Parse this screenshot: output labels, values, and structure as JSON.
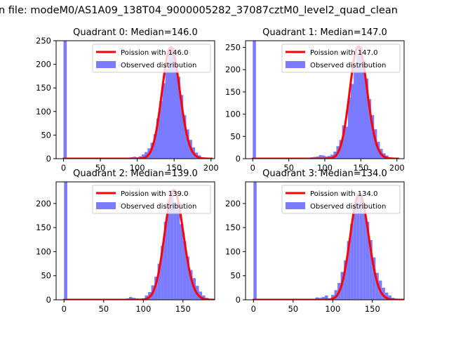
{
  "figure": {
    "suptitle": "n file: modeM0/AS1A09_138T04_9000005282_37087cztM0_level2_quad_clean"
  },
  "colors": {
    "fit_line": "#ff0000",
    "hist_fill": "#7b7bff"
  },
  "chart_data": [
    {
      "type": "bar",
      "title": "Quadrant 0: Median=146.0",
      "xlim": [
        -10,
        205
      ],
      "ylim": [
        0,
        250
      ],
      "xticks": [
        0,
        50,
        100,
        150,
        200
      ],
      "xtick_labels": [
        "0",
        "50",
        "100",
        "150",
        "200"
      ],
      "yticks": [
        0,
        50,
        100,
        150,
        200,
        250
      ],
      "ytick_labels": [
        "0",
        "50",
        "100",
        "150",
        "200",
        "250"
      ],
      "legend": {
        "placement": "top-right",
        "line_label": "Poission with 146.0",
        "hist_label": "Observed distribution"
      },
      "median": 146.0,
      "spike": {
        "x": 0,
        "value": 300
      },
      "histogram": {
        "bin_width": 4.4,
        "bin_starts": [
          74,
          78,
          82,
          86,
          90,
          94,
          98,
          102,
          106,
          110,
          114,
          118,
          122,
          126,
          130,
          134,
          138,
          142,
          146,
          150,
          154,
          158,
          162,
          166,
          170,
          174,
          178,
          182,
          186,
          190,
          194
        ],
        "counts": [
          1,
          2,
          1,
          2,
          3,
          4,
          3,
          5,
          9,
          14,
          22,
          34,
          52,
          85,
          122,
          160,
          190,
          226,
          236,
          206,
          174,
          135,
          92,
          62,
          40,
          24,
          13,
          7,
          3,
          1,
          1
        ]
      }
    },
    {
      "type": "bar",
      "title": "Quadrant 1: Median=147.0",
      "xlim": [
        -10,
        210
      ],
      "ylim": [
        0,
        265
      ],
      "xticks": [
        0,
        50,
        100,
        150,
        200
      ],
      "xtick_labels": [
        "0",
        "50",
        "100",
        "150",
        "200"
      ],
      "yticks": [
        0,
        50,
        100,
        150,
        200,
        250
      ],
      "ytick_labels": [
        "0",
        "50",
        "100",
        "150",
        "200",
        "250"
      ],
      "legend": {
        "placement": "top-right",
        "line_label": "Poission with 147.0",
        "hist_label": "Observed distribution"
      },
      "median": 147.0,
      "spike": {
        "x": 0,
        "value": 300
      },
      "histogram": {
        "bin_width": 4.4,
        "bin_starts": [
          76,
          80,
          84,
          88,
          92,
          96,
          100,
          104,
          108,
          112,
          116,
          120,
          124,
          128,
          132,
          136,
          140,
          144,
          148,
          152,
          156,
          160,
          164,
          168,
          172,
          176,
          180,
          184,
          188,
          192,
          196
        ],
        "counts": [
          2,
          3,
          4,
          5,
          8,
          7,
          5,
          6,
          9,
          16,
          28,
          42,
          75,
          72,
          138,
          168,
          205,
          237,
          252,
          222,
          180,
          134,
          98,
          66,
          38,
          22,
          12,
          7,
          3,
          2,
          1
        ]
      }
    },
    {
      "type": "bar",
      "title": "Quadrant 2: Median=139.0",
      "xlim": [
        -10,
        190
      ],
      "ylim": [
        0,
        245
      ],
      "xticks": [
        0,
        50,
        100,
        150
      ],
      "xtick_labels": [
        "0",
        "50",
        "100",
        "150"
      ],
      "yticks": [
        0,
        50,
        100,
        150,
        200
      ],
      "ytick_labels": [
        "0",
        "50",
        "100",
        "150",
        "200"
      ],
      "legend": {
        "placement": "top-right",
        "line_label": "Poission with 139.0",
        "hist_label": "Observed distribution"
      },
      "median": 139.0,
      "spike": {
        "x": 0,
        "value": 300
      },
      "histogram": {
        "bin_width": 4.1,
        "bin_starts": [
          78,
          82,
          86,
          90,
          94,
          98,
          102,
          106,
          110,
          114,
          118,
          122,
          126,
          130,
          134,
          138,
          142,
          146,
          150,
          154,
          158,
          162,
          166,
          170,
          174,
          178
        ],
        "counts": [
          3,
          6,
          4,
          3,
          2,
          3,
          9,
          16,
          30,
          48,
          75,
          112,
          162,
          208,
          228,
          203,
          188,
          157,
          122,
          90,
          62,
          45,
          29,
          17,
          9,
          4
        ]
      }
    },
    {
      "type": "bar",
      "title": "Quadrant 3: Median=134.0",
      "xlim": [
        -10,
        190
      ],
      "ylim": [
        0,
        245
      ],
      "xticks": [
        0,
        50,
        100,
        150
      ],
      "xtick_labels": [
        "0",
        "50",
        "100",
        "150"
      ],
      "yticks": [
        0,
        50,
        100,
        150,
        200
      ],
      "ytick_labels": [
        "0",
        "50",
        "100",
        "150",
        "200"
      ],
      "legend": {
        "placement": "top-right",
        "line_label": "Poission with 134.0",
        "hist_label": "Observed distribution"
      },
      "median": 134.0,
      "spike": {
        "x": 0,
        "value": 300
      },
      "histogram": {
        "bin_width": 4.0,
        "bin_starts": [
          74,
          78,
          82,
          86,
          90,
          94,
          98,
          102,
          106,
          110,
          114,
          118,
          122,
          126,
          130,
          134,
          138,
          142,
          146,
          150,
          154,
          158,
          162,
          166,
          170,
          174
        ],
        "counts": [
          2,
          5,
          4,
          6,
          9,
          3,
          10,
          20,
          35,
          58,
          82,
          122,
          158,
          196,
          216,
          220,
          184,
          162,
          124,
          88,
          56,
          40,
          25,
          15,
          9,
          4
        ]
      }
    }
  ]
}
